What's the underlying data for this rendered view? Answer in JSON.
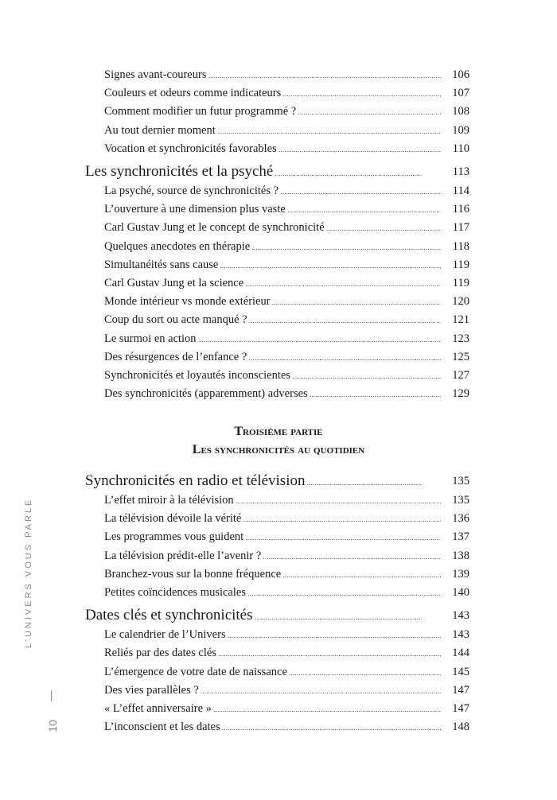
{
  "entries_top": [
    {
      "title": "Signes avant-coureurs",
      "page": "106"
    },
    {
      "title": "Couleurs et odeurs comme indicateurs",
      "page": "107"
    },
    {
      "title": "Comment modifier un futur programmé ?",
      "page": "108"
    },
    {
      "title": "Au tout dernier moment",
      "page": "109"
    },
    {
      "title": "Vocation et synchronicités favorables",
      "page": "110"
    },
    {
      "title": "Les synchronicités et la psyché",
      "page": "113",
      "chapter": true
    },
    {
      "title": "La psyché, source de synchronicités ?",
      "page": "114"
    },
    {
      "title": "L’ouverture à une dimension plus vaste",
      "page": "116"
    },
    {
      "title": "Carl Gustav Jung et le concept de synchronicité",
      "page": "117"
    },
    {
      "title": "Quelques anecdotes en thérapie",
      "page": "118"
    },
    {
      "title": "Simultanéités sans cause",
      "page": "119"
    },
    {
      "title": "Carl Gustav Jung et la science",
      "page": "119"
    },
    {
      "title": "Monde intérieur vs monde extérieur",
      "page": "120"
    },
    {
      "title": "Coup du sort ou acte manqué ?",
      "page": "121"
    },
    {
      "title": "Le surmoi en action",
      "page": "123"
    },
    {
      "title": "Des résurgences de l’enfance ?",
      "page": "125"
    },
    {
      "title": "Synchronicités et loyautés inconscientes",
      "page": "127"
    },
    {
      "title": "Des synchronicités (apparemment) adverses",
      "page": "129"
    }
  ],
  "part": {
    "label": "Troisième partie",
    "title": "Les synchronicités au quotidien"
  },
  "entries_bottom": [
    {
      "title": "Synchronicités en radio et télévision",
      "page": "135",
      "chapter": true
    },
    {
      "title": "L’effet miroir à la télévision",
      "page": "135"
    },
    {
      "title": "La télévision dévoile la vérité",
      "page": "136"
    },
    {
      "title": "Les programmes vous guident",
      "page": "137"
    },
    {
      "title": "La télévision prédit-elle l’avenir ?",
      "page": "138"
    },
    {
      "title": "Branchez-vous sur la bonne fréquence",
      "page": "139"
    },
    {
      "title": "Petites coïncidences musicales",
      "page": "140"
    },
    {
      "title": "Dates clés et synchronicités",
      "page": "143",
      "chapter": true
    },
    {
      "title": "Le calendrier de l’Univers",
      "page": "143"
    },
    {
      "title": "Reliés par des dates clés",
      "page": "144"
    },
    {
      "title": "L’émergence de votre date de naissance",
      "page": "145"
    },
    {
      "title": "Des vies parallèles ?",
      "page": "147"
    },
    {
      "title": "« L’effet anniversaire »",
      "page": "147"
    },
    {
      "title": "L’inconscient et les dates",
      "page": "148"
    }
  ],
  "running_head": {
    "book_title": "L’UNIVERS VOUS PARLE",
    "page_number": "10"
  }
}
